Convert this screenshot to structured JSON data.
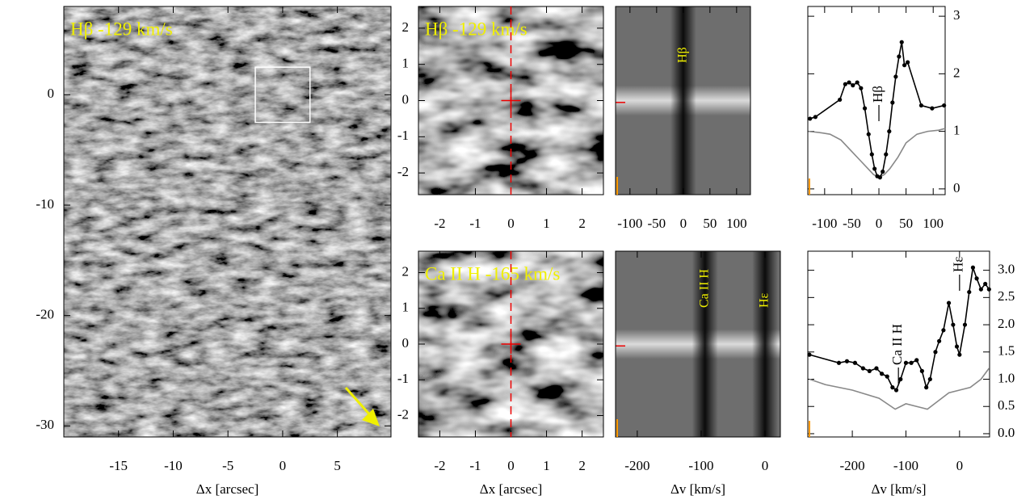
{
  "chart_data": [
    {
      "type": "image",
      "title": "Hβ -129 km/s",
      "xlabel": "Δx [arcsec]",
      "xlim": [
        -20,
        9.9
      ],
      "xticks": [
        -15,
        -10,
        -5,
        0,
        5
      ],
      "ylim": [
        -31,
        8
      ],
      "yticks": [
        0,
        -10,
        -20,
        -30
      ],
      "box": {
        "x": [
          -2.5,
          2.5
        ],
        "y": [
          -2.5,
          2.5
        ]
      }
    },
    {
      "type": "image",
      "title": "Hβ -129 km/s",
      "xlim": [
        -2.6,
        2.6
      ],
      "xticks": [
        -2,
        -1,
        0,
        1,
        2
      ],
      "ylim": [
        -2.6,
        2.6
      ],
      "yticks": [
        2,
        1,
        0,
        -1,
        -2
      ],
      "crosshair": {
        "x": 0,
        "y": 0
      }
    },
    {
      "type": "spectrum",
      "xlim": [
        -127,
        126
      ],
      "xticks": [
        -100,
        -50,
        0,
        50,
        100
      ],
      "annotations": [
        {
          "text": "Hβ",
          "x": 0
        }
      ]
    },
    {
      "type": "line",
      "xlim": [
        -131,
        122
      ],
      "xticks": [
        -100,
        -50,
        0,
        50,
        100
      ],
      "ylim": [
        -0.1,
        3.17
      ],
      "yticks": [
        0,
        1,
        2,
        3
      ],
      "annotations": [
        {
          "text": "Hβ",
          "x": 0
        }
      ],
      "series": [
        {
          "color": "#888888",
          "x": [
            -130,
            -110,
            -90,
            -70,
            -50,
            -35,
            -20,
            -10,
            0,
            10,
            20,
            35,
            50,
            70,
            90,
            110,
            122
          ],
          "values": [
            1.0,
            0.98,
            0.95,
            0.85,
            0.65,
            0.5,
            0.35,
            0.25,
            0.2,
            0.25,
            0.35,
            0.55,
            0.8,
            0.95,
            1.0,
            1.02,
            1.05
          ]
        },
        {
          "color": "#000000",
          "markers": true,
          "x": [
            -127,
            -117,
            -72,
            -62,
            -55,
            -48,
            -40,
            -33,
            -26,
            -19,
            -13,
            -8,
            -3,
            2,
            7,
            13,
            19,
            25,
            31,
            37,
            42,
            47,
            53,
            78,
            98,
            120
          ],
          "values": [
            1.22,
            1.25,
            1.55,
            1.82,
            1.85,
            1.8,
            1.85,
            1.75,
            1.4,
            0.95,
            0.6,
            0.35,
            0.22,
            0.2,
            0.3,
            0.6,
            1.0,
            1.5,
            1.95,
            2.3,
            2.55,
            2.15,
            2.2,
            1.45,
            1.4,
            1.45
          ]
        }
      ]
    },
    {
      "type": "image",
      "title": "Ca II H -165 km/s",
      "xlabel": "Δx [arcsec]",
      "xlim": [
        -2.6,
        2.6
      ],
      "xticks": [
        -2,
        -1,
        0,
        1,
        2
      ],
      "ylim": [
        -2.6,
        2.6
      ],
      "yticks": [
        2,
        1,
        0,
        -1,
        -2
      ],
      "crosshair": {
        "x": 0,
        "y": 0
      }
    },
    {
      "type": "spectrum",
      "xlabel": "Δv [km/s]",
      "xlim": [
        -234,
        24
      ],
      "xticks": [
        -200,
        -100,
        0
      ],
      "annotations": [
        {
          "text": "Ca II H",
          "x": -94
        },
        {
          "text": "Hε",
          "x": 0
        }
      ]
    },
    {
      "type": "line",
      "xlabel": "Δv [km/s]",
      "xlim": [
        -283,
        56
      ],
      "xticks": [
        -200,
        -100,
        0
      ],
      "ylim": [
        -0.06,
        3.35
      ],
      "yticks": [
        {
          "value": 0,
          "label": "0.0"
        },
        0.5,
        {
          "value": 1,
          "label": "1.0"
        },
        1.5,
        {
          "value": 2,
          "label": "2.0"
        },
        2.5,
        {
          "value": 3,
          "label": "3.0"
        }
      ],
      "annotations": [
        {
          "text": "Ca II H",
          "x": -114
        },
        {
          "text": "Hε",
          "x": 0
        }
      ],
      "series": [
        {
          "color": "#888888",
          "x": [
            -280,
            -250,
            -200,
            -150,
            -120,
            -100,
            -80,
            -60,
            -40,
            -20,
            0,
            20,
            40,
            55
          ],
          "values": [
            1.0,
            0.9,
            0.8,
            0.65,
            0.45,
            0.55,
            0.5,
            0.45,
            0.6,
            0.75,
            0.8,
            0.85,
            1.0,
            1.2
          ]
        },
        {
          "color": "#000000",
          "markers": true,
          "x": [
            -280,
            -225,
            -210,
            -195,
            -180,
            -168,
            -155,
            -145,
            -135,
            -125,
            -118,
            -110,
            -100,
            -90,
            -80,
            -70,
            -62,
            -55,
            -45,
            -38,
            -30,
            -20,
            -12,
            -5,
            0,
            10,
            18,
            25,
            32,
            40,
            48,
            55
          ],
          "values": [
            1.45,
            1.3,
            1.33,
            1.3,
            1.2,
            1.15,
            1.2,
            1.1,
            1.05,
            0.85,
            0.8,
            1.0,
            1.3,
            1.3,
            1.35,
            1.15,
            0.85,
            1.0,
            1.5,
            1.7,
            1.9,
            2.4,
            2.0,
            1.6,
            1.45,
            2.0,
            2.6,
            3.05,
            2.85,
            2.65,
            2.75,
            2.65
          ]
        }
      ]
    }
  ]
}
